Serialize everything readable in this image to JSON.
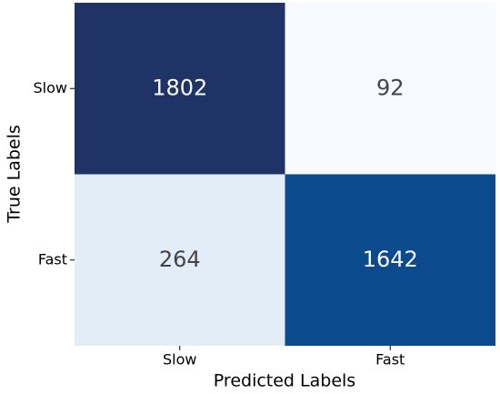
{
  "chart_data": {
    "type": "heatmap",
    "x_label": "Predicted Labels",
    "y_label": "True Labels",
    "x_categories": [
      "Slow",
      "Fast"
    ],
    "y_categories": [
      "Slow",
      "Fast"
    ],
    "values": [
      [
        1802,
        92
      ],
      [
        264,
        1642
      ]
    ],
    "colors": [
      [
        "#1f3367",
        "#f7fbff"
      ],
      [
        "#e2edf8",
        "#0b4b8d"
      ]
    ]
  }
}
